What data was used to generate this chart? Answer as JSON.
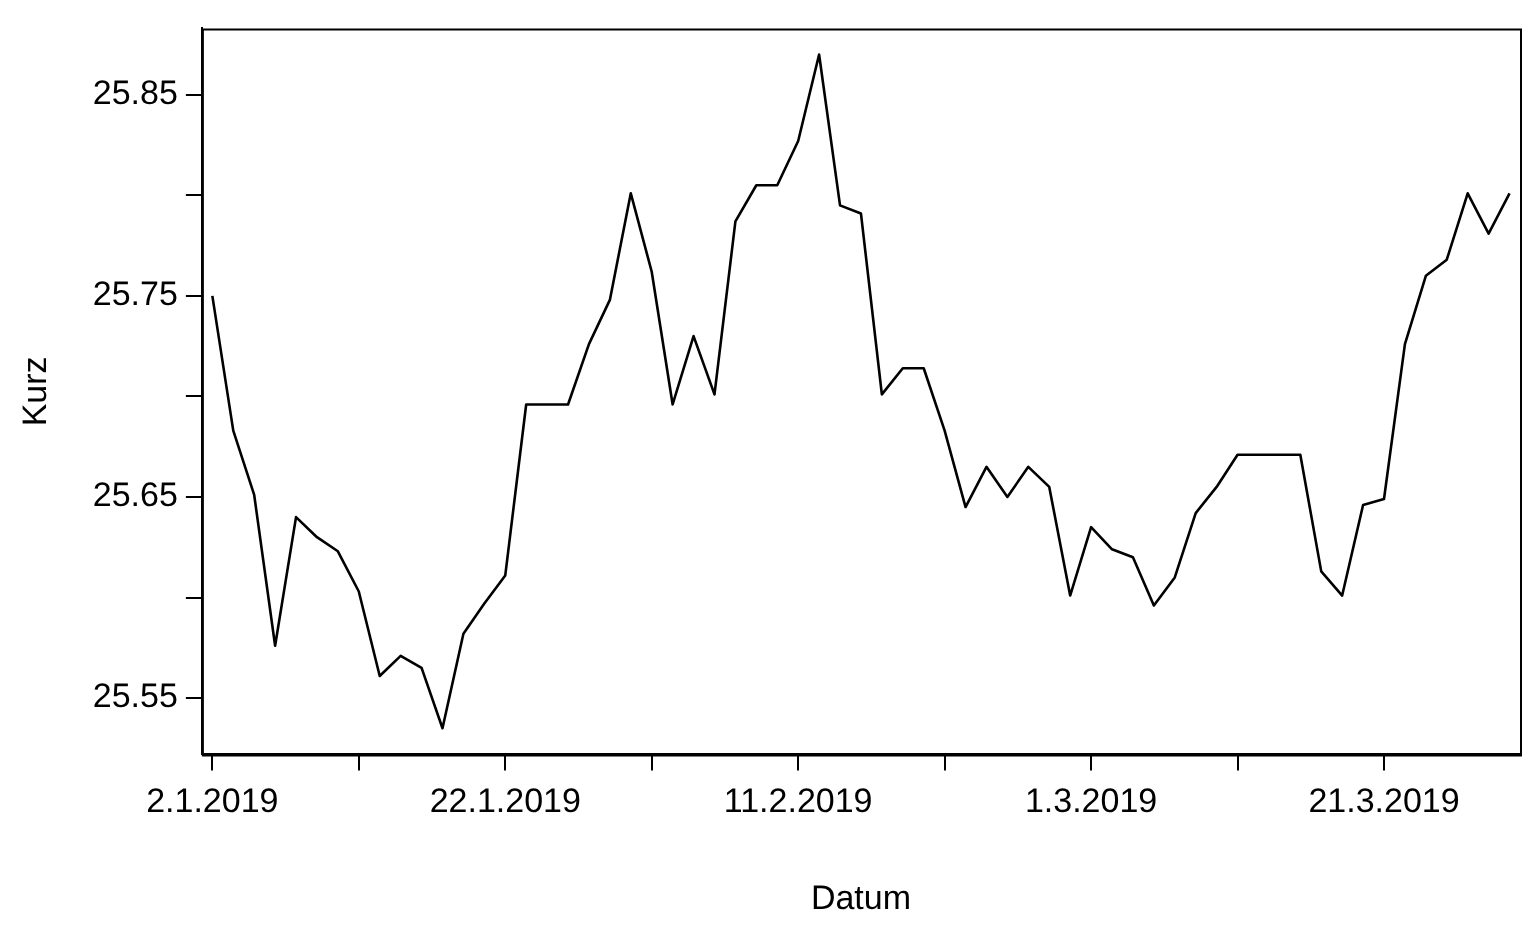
{
  "chart_data": {
    "type": "line",
    "xlabel": "Datum",
    "ylabel": "Kurz",
    "categories": [
      "2.1.2019",
      null,
      null,
      null,
      null,
      null,
      null,
      null,
      null,
      null,
      null,
      null,
      null,
      null,
      "22.1.2019",
      null,
      null,
      null,
      null,
      null,
      null,
      null,
      null,
      null,
      null,
      null,
      null,
      null,
      "11.2.2019",
      null,
      null,
      null,
      null,
      null,
      null,
      null,
      null,
      null,
      null,
      null,
      null,
      null,
      "1.3.2019",
      null,
      null,
      null,
      null,
      null,
      null,
      null,
      null,
      null,
      null,
      null,
      null,
      null,
      "21.3.2019",
      null,
      null,
      null,
      null,
      null,
      null
    ],
    "series": [
      {
        "color": "#000000",
        "values": [
          25.75,
          25.683,
          25.651,
          25.576,
          25.64,
          25.63,
          25.623,
          25.603,
          25.561,
          25.571,
          25.565,
          25.535,
          25.582,
          25.597,
          25.611,
          25.696,
          25.696,
          25.696,
          25.726,
          25.748,
          25.801,
          25.762,
          25.696,
          25.73,
          25.701,
          25.787,
          25.805,
          25.805,
          25.827,
          25.87,
          25.795,
          25.791,
          25.701,
          25.714,
          25.714,
          25.683,
          25.645,
          25.665,
          25.65,
          25.665,
          25.655,
          25.601,
          25.635,
          25.624,
          25.62,
          25.596,
          25.61,
          25.642,
          25.655,
          25.671,
          25.671,
          25.671,
          25.671,
          25.613,
          25.601,
          25.646,
          25.649,
          25.726,
          25.76,
          25.768,
          25.801,
          25.781,
          25.801
        ]
      }
    ],
    "ylim": [
      25.522,
      25.883
    ],
    "yticks": [
      25.55,
      {
        "value": 25.6,
        "label": null
      },
      25.65,
      {
        "value": 25.7,
        "label": null
      },
      25.75,
      {
        "value": 25.8,
        "label": null
      },
      25.85
    ],
    "grid": false,
    "legend": false,
    "marker": "none",
    "line_style": "solid"
  }
}
